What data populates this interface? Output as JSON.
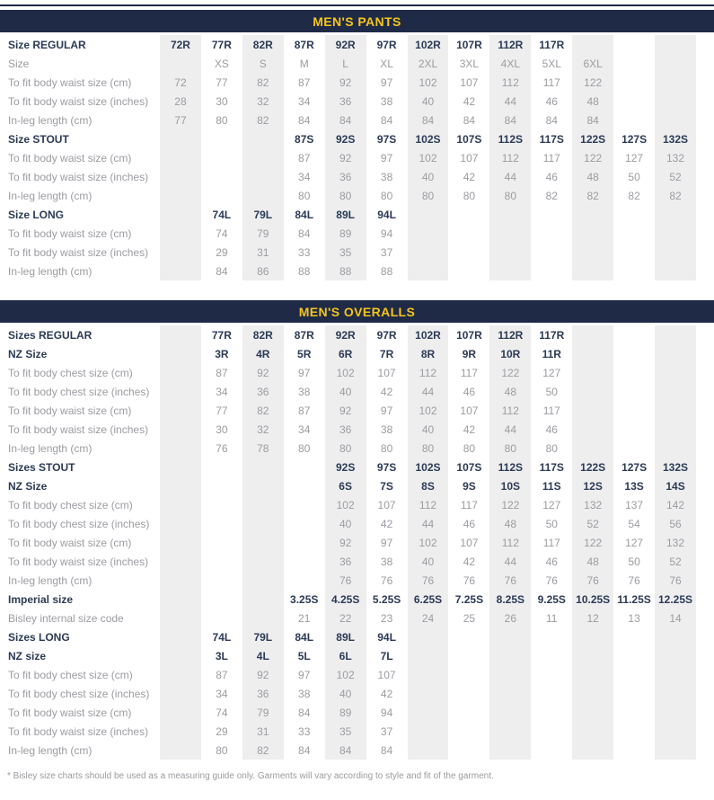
{
  "colors": {
    "header_bg": "#1e2a46",
    "header_text": "#f5c41e",
    "bold_text": "#2b3a55",
    "plain_text": "#9b9ca1",
    "stripe": "#eeeeef",
    "background": "#ffffff"
  },
  "footer": {
    "note": "* Bisley size charts should be used as a measuring guide only. Garments will vary according to style and fit of the garment."
  },
  "tables": [
    {
      "title": "MEN'S PANTS",
      "columns_total": 13,
      "rows": [
        {
          "label": "Size REGULAR",
          "style": "bold",
          "start": 1,
          "values": [
            "72R",
            "77R",
            "82R",
            "87R",
            "92R",
            "97R",
            "102R",
            "107R",
            "112R",
            "117R"
          ]
        },
        {
          "label": "Size",
          "style": "plain",
          "start": 2,
          "values": [
            "XS",
            "S",
            "M",
            "L",
            "XL",
            "2XL",
            "3XL",
            "4XL",
            "5XL",
            "6XL"
          ]
        },
        {
          "label": "To fit body waist size (cm)",
          "style": "plain",
          "start": 1,
          "values": [
            "72",
            "77",
            "82",
            "87",
            "92",
            "97",
            "102",
            "107",
            "112",
            "117",
            "122"
          ]
        },
        {
          "label": "To fit body waist size (inches)",
          "style": "plain",
          "start": 1,
          "values": [
            "28",
            "30",
            "32",
            "34",
            "36",
            "38",
            "40",
            "42",
            "44",
            "46",
            "48"
          ]
        },
        {
          "label": "In-leg length (cm)",
          "style": "plain",
          "start": 1,
          "values": [
            "77",
            "80",
            "82",
            "84",
            "84",
            "84",
            "84",
            "84",
            "84",
            "84",
            "84"
          ]
        },
        {
          "label": "Size STOUT",
          "style": "bold",
          "start": 4,
          "values": [
            "87S",
            "92S",
            "97S",
            "102S",
            "107S",
            "112S",
            "117S",
            "122S",
            "127S",
            "132S"
          ]
        },
        {
          "label": "To fit body waist size (cm)",
          "style": "plain",
          "start": 4,
          "values": [
            "87",
            "92",
            "97",
            "102",
            "107",
            "112",
            "117",
            "122",
            "127",
            "132"
          ]
        },
        {
          "label": "To fit body waist size (inches)",
          "style": "plain",
          "start": 4,
          "values": [
            "34",
            "36",
            "38",
            "40",
            "42",
            "44",
            "46",
            "48",
            "50",
            "52"
          ]
        },
        {
          "label": "In-leg length (cm)",
          "style": "plain",
          "start": 4,
          "values": [
            "80",
            "80",
            "80",
            "80",
            "80",
            "80",
            "82",
            "82",
            "82",
            "82"
          ]
        },
        {
          "label": "Size LONG",
          "style": "bold",
          "start": 2,
          "values": [
            "74L",
            "79L",
            "84L",
            "89L",
            "94L"
          ]
        },
        {
          "label": "To fit body waist size (cm)",
          "style": "plain",
          "start": 2,
          "values": [
            "74",
            "79",
            "84",
            "89",
            "94"
          ]
        },
        {
          "label": "To fit body waist size (inches)",
          "style": "plain",
          "start": 2,
          "values": [
            "29",
            "31",
            "33",
            "35",
            "37"
          ]
        },
        {
          "label": "In-leg length (cm)",
          "style": "plain",
          "start": 2,
          "values": [
            "84",
            "86",
            "88",
            "88",
            "88"
          ]
        }
      ]
    },
    {
      "title": "MEN'S OVERALLS",
      "columns_total": 13,
      "rows": [
        {
          "label": "Sizes REGULAR",
          "style": "bold",
          "start": 2,
          "values": [
            "77R",
            "82R",
            "87R",
            "92R",
            "97R",
            "102R",
            "107R",
            "112R",
            "117R"
          ]
        },
        {
          "label": "NZ Size",
          "style": "bold",
          "start": 2,
          "values": [
            "3R",
            "4R",
            "5R",
            "6R",
            "7R",
            "8R",
            "9R",
            "10R",
            "11R"
          ]
        },
        {
          "label": "To fit body chest size (cm)",
          "style": "plain",
          "start": 2,
          "values": [
            "87",
            "92",
            "97",
            "102",
            "107",
            "112",
            "117",
            "122",
            "127"
          ]
        },
        {
          "label": "To fit body chest size (inches)",
          "style": "plain",
          "start": 2,
          "values": [
            "34",
            "36",
            "38",
            "40",
            "42",
            "44",
            "46",
            "48",
            "50"
          ]
        },
        {
          "label": "To fit body waist size (cm)",
          "style": "plain",
          "start": 2,
          "values": [
            "77",
            "82",
            "87",
            "92",
            "97",
            "102",
            "107",
            "112",
            "117"
          ]
        },
        {
          "label": "To fit body waist size (inches)",
          "style": "plain",
          "start": 2,
          "values": [
            "30",
            "32",
            "34",
            "36",
            "38",
            "40",
            "42",
            "44",
            "46"
          ]
        },
        {
          "label": "In-leg length (cm)",
          "style": "plain",
          "start": 2,
          "values": [
            "76",
            "78",
            "80",
            "80",
            "80",
            "80",
            "80",
            "80",
            "80"
          ]
        },
        {
          "label": "Sizes STOUT",
          "style": "bold",
          "start": 5,
          "values": [
            "92S",
            "97S",
            "102S",
            "107S",
            "112S",
            "117S",
            "122S",
            "127S",
            "132S"
          ]
        },
        {
          "label": "NZ Size",
          "style": "bold",
          "start": 5,
          "values": [
            "6S",
            "7S",
            "8S",
            "9S",
            "10S",
            "11S",
            "12S",
            "13S",
            "14S"
          ]
        },
        {
          "label": "To fit body chest size (cm)",
          "style": "plain",
          "start": 5,
          "values": [
            "102",
            "107",
            "112",
            "117",
            "122",
            "127",
            "132",
            "137",
            "142"
          ]
        },
        {
          "label": "To fit body chest size (inches)",
          "style": "plain",
          "start": 5,
          "values": [
            "40",
            "42",
            "44",
            "46",
            "48",
            "50",
            "52",
            "54",
            "56"
          ]
        },
        {
          "label": "To fit body waist size (cm)",
          "style": "plain",
          "start": 5,
          "values": [
            "92",
            "97",
            "102",
            "107",
            "112",
            "117",
            "122",
            "127",
            "132"
          ]
        },
        {
          "label": "To fit body waist size (inches)",
          "style": "plain",
          "start": 5,
          "values": [
            "36",
            "38",
            "40",
            "42",
            "44",
            "46",
            "48",
            "50",
            "52"
          ]
        },
        {
          "label": "In-leg length (cm)",
          "style": "plain",
          "start": 5,
          "values": [
            "76",
            "76",
            "76",
            "76",
            "76",
            "76",
            "76",
            "76",
            "76"
          ]
        },
        {
          "label": "Imperial size",
          "style": "bold",
          "start": 4,
          "values": [
            "3.25S",
            "4.25S",
            "5.25S",
            "6.25S",
            "7.25S",
            "8.25S",
            "9.25S",
            "10.25S",
            "11.25S",
            "12.25S"
          ]
        },
        {
          "label": "Bisley internal size code",
          "style": "plain",
          "start": 4,
          "values": [
            "21",
            "22",
            "23",
            "24",
            "25",
            "26",
            "11",
            "12",
            "13",
            "14"
          ]
        },
        {
          "label": "Sizes LONG",
          "style": "bold",
          "start": 2,
          "values": [
            "74L",
            "79L",
            "84L",
            "89L",
            "94L"
          ]
        },
        {
          "label": "NZ size",
          "style": "bold",
          "start": 2,
          "values": [
            "3L",
            "4L",
            "5L",
            "6L",
            "7L"
          ]
        },
        {
          "label": "To fit body chest size (cm)",
          "style": "plain",
          "start": 2,
          "values": [
            "87",
            "92",
            "97",
            "102",
            "107"
          ]
        },
        {
          "label": "To fit body chest size (inches)",
          "style": "plain",
          "start": 2,
          "values": [
            "34",
            "36",
            "38",
            "40",
            "42"
          ]
        },
        {
          "label": "To fit body waist size (cm)",
          "style": "plain",
          "start": 2,
          "values": [
            "74",
            "79",
            "84",
            "89",
            "94"
          ]
        },
        {
          "label": "To fit body waist size (inches)",
          "style": "plain",
          "start": 2,
          "values": [
            "29",
            "31",
            "33",
            "35",
            "37"
          ]
        },
        {
          "label": "In-leg length (cm)",
          "style": "plain",
          "start": 2,
          "values": [
            "80",
            "82",
            "84",
            "84",
            "84"
          ]
        }
      ]
    }
  ]
}
